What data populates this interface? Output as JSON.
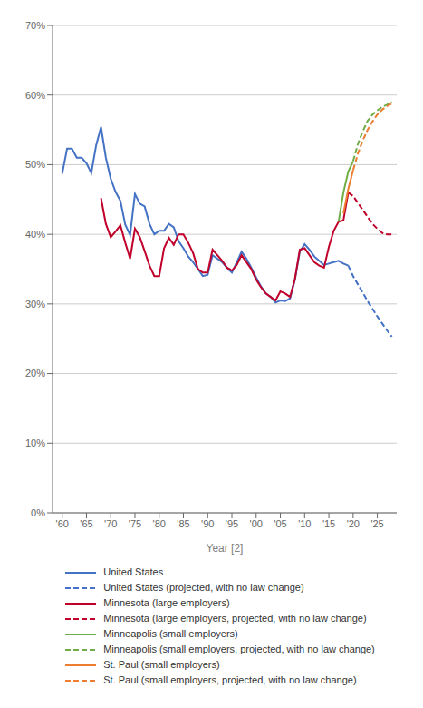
{
  "chart_data": {
    "type": "line",
    "xlabel": "Year [2]",
    "xlim": [
      1958,
      2029
    ],
    "xticks": [
      {
        "value": 1960,
        "label": "'60"
      },
      {
        "value": 1965,
        "label": "'65"
      },
      {
        "value": 1970,
        "label": "'70"
      },
      {
        "value": 1975,
        "label": "'75"
      },
      {
        "value": 1980,
        "label": "'80"
      },
      {
        "value": 1985,
        "label": "'85"
      },
      {
        "value": 1990,
        "label": "'90"
      },
      {
        "value": 1995,
        "label": "'95"
      },
      {
        "value": 2000,
        "label": "'00"
      },
      {
        "value": 2005,
        "label": "'05"
      },
      {
        "value": 2010,
        "label": "'10"
      },
      {
        "value": 2015,
        "label": "'15"
      },
      {
        "value": 2020,
        "label": "'20"
      },
      {
        "value": 2025,
        "label": "'25"
      }
    ],
    "ylim": [
      0,
      0.7
    ],
    "yticks": [
      {
        "value": 0,
        "label": "0%"
      },
      {
        "value": 0.1,
        "label": "10%"
      },
      {
        "value": 0.2,
        "label": "20%"
      },
      {
        "value": 0.3,
        "label": "30%"
      },
      {
        "value": 0.4,
        "label": "40%"
      },
      {
        "value": 0.5,
        "label": "50%"
      },
      {
        "value": 0.6,
        "label": "60%"
      },
      {
        "value": 0.7,
        "label": "70%"
      }
    ],
    "grid": "y",
    "legend": "bottom",
    "series": [
      {
        "name": "United States",
        "color": "#4472C4",
        "line_style": "solid",
        "x": [
          1960,
          1961,
          1962,
          1963,
          1964,
          1965,
          1966,
          1967,
          1968,
          1969,
          1970,
          1971,
          1972,
          1973,
          1974,
          1975,
          1976,
          1977,
          1978,
          1979,
          1980,
          1981,
          1982,
          1983,
          1984,
          1985,
          1986,
          1987,
          1988,
          1989,
          1990,
          1991,
          1992,
          1993,
          1994,
          1995,
          1996,
          1997,
          1998,
          1999,
          2000,
          2001,
          2002,
          2003,
          2004,
          2005,
          2006,
          2007,
          2008,
          2009,
          2010,
          2011,
          2012,
          2013,
          2014,
          2015,
          2016,
          2017,
          2018,
          2019
        ],
        "values": [
          0.487,
          0.523,
          0.523,
          0.51,
          0.51,
          0.502,
          0.488,
          0.528,
          0.554,
          0.51,
          0.48,
          0.461,
          0.448,
          0.414,
          0.399,
          0.458,
          0.444,
          0.44,
          0.415,
          0.4,
          0.405,
          0.405,
          0.415,
          0.41,
          0.39,
          0.38,
          0.368,
          0.36,
          0.35,
          0.34,
          0.342,
          0.37,
          0.365,
          0.36,
          0.352,
          0.345,
          0.36,
          0.375,
          0.365,
          0.352,
          0.338,
          0.325,
          0.315,
          0.31,
          0.302,
          0.305,
          0.304,
          0.308,
          0.335,
          0.375,
          0.386,
          0.378,
          0.368,
          0.362,
          0.356,
          0.358,
          0.36,
          0.362,
          0.358,
          0.355
        ]
      },
      {
        "name": "United States (projected, with no law change)",
        "color": "#4472C4",
        "line_style": "dashed",
        "x": [
          2019,
          2020,
          2021,
          2022,
          2023,
          2024,
          2025,
          2026,
          2027,
          2028
        ],
        "values": [
          0.355,
          0.34,
          0.328,
          0.316,
          0.304,
          0.293,
          0.282,
          0.272,
          0.262,
          0.253
        ]
      },
      {
        "name": "Minnesota (large employers)",
        "color": "#C0002A",
        "line_style": "solid",
        "x": [
          1968,
          1969,
          1970,
          1971,
          1972,
          1973,
          1974,
          1975,
          1976,
          1977,
          1978,
          1979,
          1980,
          1981,
          1982,
          1983,
          1984,
          1985,
          1986,
          1987,
          1988,
          1989,
          1990,
          1991,
          1992,
          1993,
          1994,
          1995,
          1996,
          1997,
          1998,
          1999,
          2000,
          2001,
          2002,
          2003,
          2004,
          2005,
          2006,
          2007,
          2008,
          2009,
          2010,
          2011,
          2012,
          2013,
          2014,
          2015,
          2016,
          2017,
          2018,
          2019
        ],
        "values": [
          0.452,
          0.415,
          0.396,
          0.404,
          0.413,
          0.388,
          0.365,
          0.408,
          0.396,
          0.376,
          0.355,
          0.34,
          0.34,
          0.38,
          0.395,
          0.385,
          0.4,
          0.4,
          0.388,
          0.373,
          0.35,
          0.345,
          0.345,
          0.378,
          0.37,
          0.362,
          0.352,
          0.348,
          0.356,
          0.37,
          0.36,
          0.35,
          0.335,
          0.324,
          0.315,
          0.31,
          0.305,
          0.318,
          0.315,
          0.31,
          0.336,
          0.378,
          0.38,
          0.37,
          0.36,
          0.355,
          0.352,
          0.382,
          0.405,
          0.418,
          0.42,
          0.46
        ]
      },
      {
        "name": "Minnesota (large employers, projected, with no law change)",
        "color": "#C0002A",
        "line_style": "dashed",
        "x": [
          2019,
          2020,
          2021,
          2022,
          2023,
          2024,
          2025,
          2026,
          2027,
          2028
        ],
        "values": [
          0.46,
          0.455,
          0.445,
          0.435,
          0.425,
          0.415,
          0.408,
          0.402,
          0.4,
          0.4
        ]
      },
      {
        "name": "Minneapolis (small employers)",
        "color": "#70AD47",
        "line_style": "solid",
        "x": [
          2017,
          2018,
          2019,
          2020
        ],
        "values": [
          0.418,
          0.46,
          0.49,
          0.505
        ]
      },
      {
        "name": "Minneapolis (small employers, projected, with no law change)",
        "color": "#70AD47",
        "line_style": "dashed",
        "x": [
          2020,
          2021,
          2022,
          2023,
          2024,
          2025,
          2026,
          2027,
          2028
        ],
        "values": [
          0.505,
          0.53,
          0.548,
          0.563,
          0.572,
          0.578,
          0.583,
          0.586,
          0.59
        ]
      },
      {
        "name": "St. Paul (small employers)",
        "color": "#ED7D31",
        "line_style": "solid",
        "x": [
          2018,
          2019,
          2020
        ],
        "values": [
          0.43,
          0.465,
          0.492
        ]
      },
      {
        "name": "St. Paul (small employers, projected, with no law change)",
        "color": "#ED7D31",
        "line_style": "dashed",
        "x": [
          2020,
          2021,
          2022,
          2023,
          2024,
          2025,
          2026,
          2027,
          2028
        ],
        "values": [
          0.492,
          0.516,
          0.535,
          0.55,
          0.562,
          0.572,
          0.579,
          0.584,
          0.588
        ]
      }
    ]
  }
}
